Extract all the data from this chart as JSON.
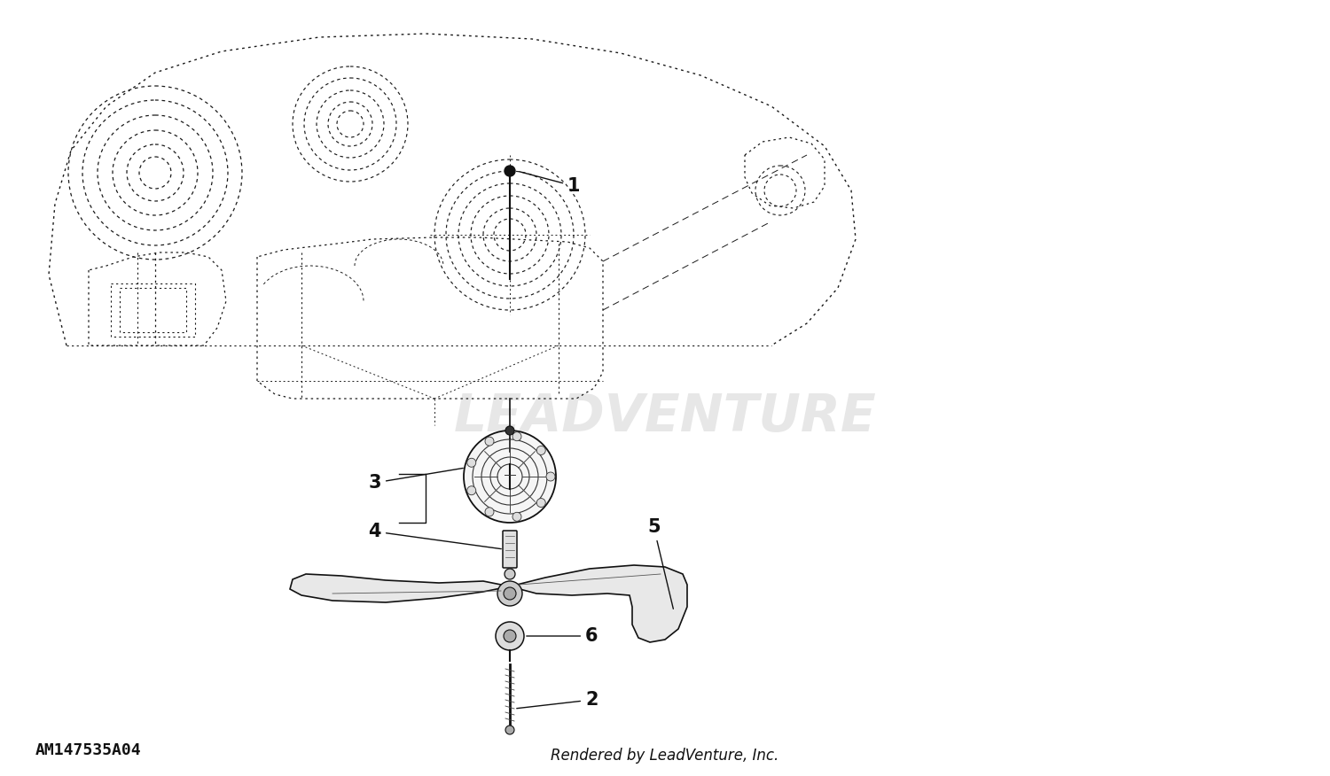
{
  "bg_color": "#ffffff",
  "fig_width": 15.0,
  "fig_height": 8.76,
  "part_number": "AM147535A04",
  "rendered_by": "Rendered by LeadVenture, Inc.",
  "watermark": "LEADVENTURE"
}
